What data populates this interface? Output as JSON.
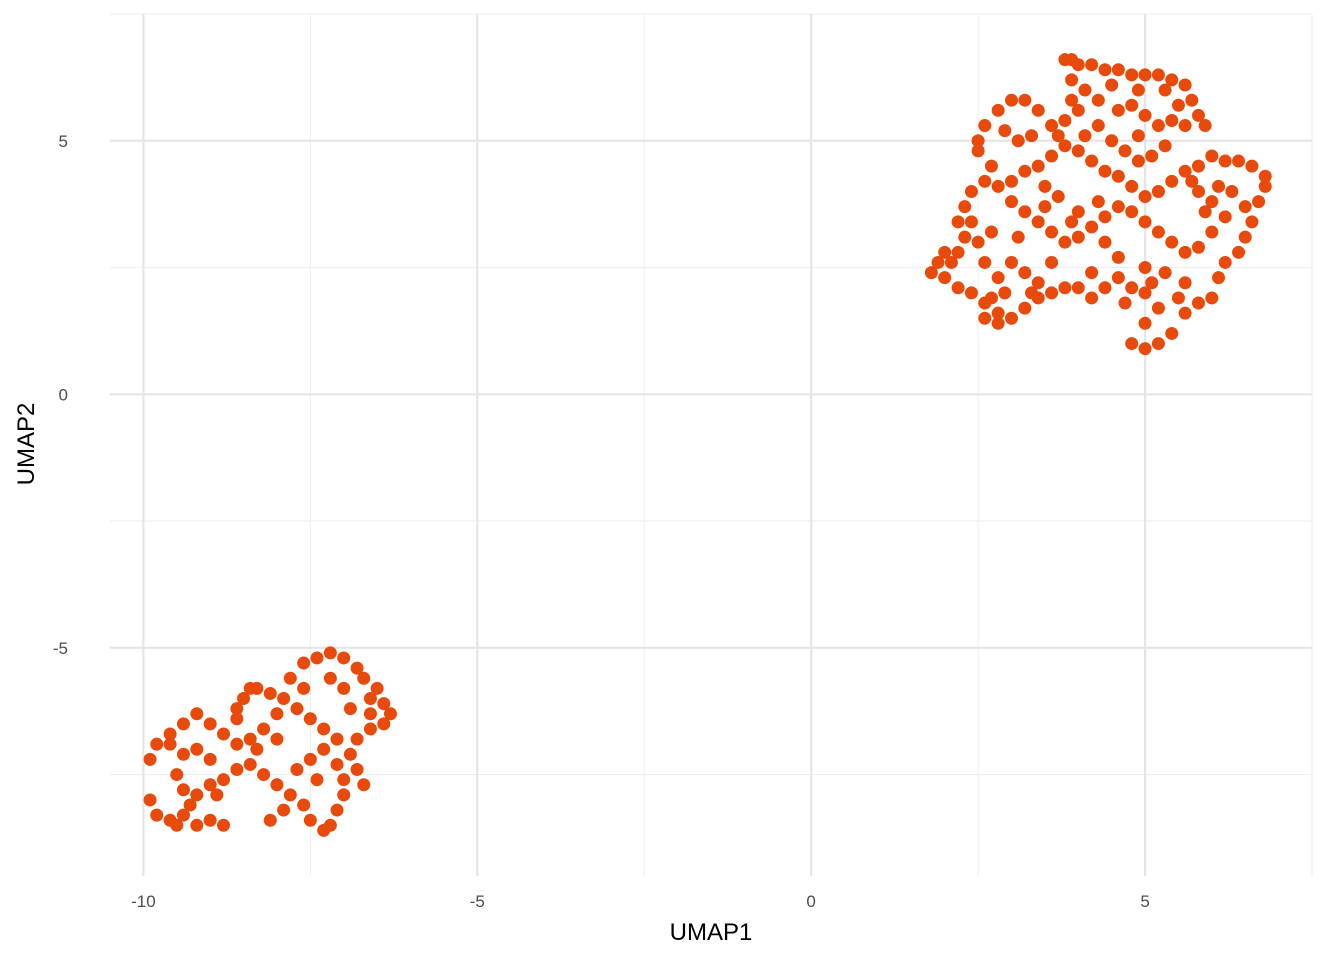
{
  "chart_data": {
    "type": "scatter",
    "title": "",
    "xlabel": "UMAP1",
    "ylabel": "UMAP2",
    "xlim": [
      -10.5,
      7.5
    ],
    "ylim": [
      -9.5,
      7.5
    ],
    "x_ticks": [
      -10,
      -5,
      0,
      5
    ],
    "x_tick_labels": [
      "-10",
      "-5",
      "0",
      "5"
    ],
    "y_ticks": [
      -5,
      0,
      5
    ],
    "y_tick_labels": [
      "-5",
      "0",
      "5"
    ],
    "grid": true,
    "legend": "none",
    "point_color": "#E84A0C",
    "series": [
      {
        "points": [
          [
            3.8,
            6.6
          ],
          [
            3.9,
            6.6
          ],
          [
            4.0,
            6.5
          ],
          [
            4.2,
            6.5
          ],
          [
            4.4,
            6.4
          ],
          [
            4.6,
            6.4
          ],
          [
            4.8,
            6.3
          ],
          [
            5.0,
            6.3
          ],
          [
            5.2,
            6.3
          ],
          [
            5.4,
            6.2
          ],
          [
            5.6,
            6.1
          ],
          [
            5.7,
            5.8
          ],
          [
            5.8,
            5.5
          ],
          [
            5.9,
            5.3
          ],
          [
            5.6,
            5.3
          ],
          [
            5.4,
            5.4
          ],
          [
            5.2,
            5.3
          ],
          [
            5.0,
            5.5
          ],
          [
            4.8,
            5.7
          ],
          [
            4.6,
            5.6
          ],
          [
            4.3,
            5.8
          ],
          [
            4.1,
            6.0
          ],
          [
            3.9,
            6.2
          ],
          [
            4.0,
            5.6
          ],
          [
            3.8,
            5.4
          ],
          [
            3.6,
            5.3
          ],
          [
            3.4,
            5.6
          ],
          [
            3.2,
            5.8
          ],
          [
            3.0,
            5.8
          ],
          [
            2.8,
            5.6
          ],
          [
            2.6,
            5.3
          ],
          [
            2.5,
            5.0
          ],
          [
            2.5,
            4.8
          ],
          [
            2.7,
            4.5
          ],
          [
            2.6,
            4.2
          ],
          [
            2.4,
            4.0
          ],
          [
            2.3,
            3.7
          ],
          [
            2.2,
            3.4
          ],
          [
            2.3,
            3.1
          ],
          [
            2.5,
            3.0
          ],
          [
            2.2,
            2.8
          ],
          [
            2.0,
            2.8
          ],
          [
            1.9,
            2.6
          ],
          [
            1.8,
            2.4
          ],
          [
            2.0,
            2.3
          ],
          [
            2.2,
            2.1
          ],
          [
            2.4,
            2.0
          ],
          [
            2.6,
            1.8
          ],
          [
            2.8,
            1.6
          ],
          [
            2.6,
            1.5
          ],
          [
            2.8,
            1.4
          ],
          [
            3.0,
            1.5
          ],
          [
            3.2,
            1.7
          ],
          [
            3.4,
            1.9
          ],
          [
            3.6,
            2.0
          ],
          [
            3.8,
            2.1
          ],
          [
            4.0,
            2.1
          ],
          [
            4.2,
            1.9
          ],
          [
            4.4,
            2.1
          ],
          [
            4.6,
            2.3
          ],
          [
            4.8,
            2.1
          ],
          [
            5.0,
            2.0
          ],
          [
            5.2,
            1.7
          ],
          [
            5.0,
            1.4
          ],
          [
            4.8,
            1.0
          ],
          [
            5.0,
            0.9
          ],
          [
            5.2,
            1.0
          ],
          [
            5.4,
            1.2
          ],
          [
            5.6,
            1.6
          ],
          [
            5.8,
            1.8
          ],
          [
            6.0,
            1.9
          ],
          [
            6.1,
            2.3
          ],
          [
            6.2,
            2.6
          ],
          [
            6.4,
            2.8
          ],
          [
            6.5,
            3.1
          ],
          [
            6.6,
            3.4
          ],
          [
            6.7,
            3.8
          ],
          [
            6.8,
            4.1
          ],
          [
            6.8,
            4.3
          ],
          [
            6.6,
            4.5
          ],
          [
            6.4,
            4.6
          ],
          [
            6.2,
            4.6
          ],
          [
            6.0,
            4.7
          ],
          [
            5.8,
            4.5
          ],
          [
            5.6,
            4.4
          ],
          [
            5.4,
            4.2
          ],
          [
            5.2,
            4.0
          ],
          [
            5.0,
            3.9
          ],
          [
            4.8,
            4.1
          ],
          [
            4.6,
            4.3
          ],
          [
            4.4,
            4.4
          ],
          [
            4.2,
            4.6
          ],
          [
            4.0,
            4.8
          ],
          [
            3.8,
            4.9
          ],
          [
            3.6,
            4.7
          ],
          [
            3.4,
            4.5
          ],
          [
            3.2,
            4.4
          ],
          [
            3.0,
            4.2
          ],
          [
            2.8,
            4.1
          ],
          [
            3.0,
            3.8
          ],
          [
            3.2,
            3.6
          ],
          [
            3.4,
            3.4
          ],
          [
            3.6,
            3.2
          ],
          [
            3.8,
            3.0
          ],
          [
            4.0,
            3.1
          ],
          [
            4.2,
            3.3
          ],
          [
            4.4,
            3.5
          ],
          [
            4.6,
            3.7
          ],
          [
            4.8,
            3.6
          ],
          [
            5.0,
            3.4
          ],
          [
            5.2,
            3.2
          ],
          [
            5.4,
            3.0
          ],
          [
            5.6,
            2.8
          ],
          [
            5.8,
            2.9
          ],
          [
            6.0,
            3.2
          ],
          [
            6.2,
            3.5
          ],
          [
            6.0,
            3.8
          ],
          [
            5.8,
            4.0
          ],
          [
            3.0,
            2.6
          ],
          [
            3.2,
            2.4
          ],
          [
            3.4,
            2.2
          ],
          [
            2.8,
            2.3
          ],
          [
            2.6,
            2.6
          ],
          [
            3.6,
            2.6
          ],
          [
            4.2,
            2.4
          ],
          [
            4.6,
            2.7
          ],
          [
            5.0,
            2.5
          ],
          [
            5.3,
            2.4
          ],
          [
            5.6,
            2.2
          ],
          [
            4.4,
            3.0
          ],
          [
            4.0,
            3.6
          ],
          [
            3.7,
            3.9
          ],
          [
            3.5,
            4.1
          ],
          [
            3.1,
            5.0
          ],
          [
            2.9,
            5.2
          ],
          [
            3.3,
            5.1
          ],
          [
            4.5,
            5.0
          ],
          [
            4.7,
            4.8
          ],
          [
            4.9,
            4.6
          ],
          [
            5.1,
            4.7
          ],
          [
            5.3,
            4.9
          ],
          [
            4.3,
            5.3
          ],
          [
            4.1,
            5.1
          ],
          [
            3.9,
            5.8
          ],
          [
            5.5,
            5.7
          ],
          [
            5.3,
            6.0
          ],
          [
            4.9,
            6.0
          ],
          [
            4.5,
            6.1
          ],
          [
            2.4,
            3.4
          ],
          [
            2.7,
            3.2
          ],
          [
            3.1,
            3.1
          ],
          [
            5.9,
            3.6
          ],
          [
            6.3,
            4.0
          ],
          [
            6.5,
            3.7
          ],
          [
            2.1,
            2.6
          ],
          [
            2.9,
            2.0
          ],
          [
            3.3,
            2.0
          ],
          [
            5.5,
            1.9
          ],
          [
            5.1,
            2.2
          ],
          [
            4.7,
            1.8
          ],
          [
            2.7,
            1.9
          ],
          [
            3.7,
            5.1
          ],
          [
            4.9,
            5.1
          ],
          [
            5.7,
            4.2
          ],
          [
            6.1,
            4.1
          ],
          [
            4.3,
            3.8
          ],
          [
            3.9,
            3.4
          ],
          [
            3.5,
            3.7
          ]
        ]
      },
      {
        "points": [
          [
            -9.9,
            -7.2
          ],
          [
            -9.8,
            -6.9
          ],
          [
            -9.6,
            -6.7
          ],
          [
            -9.4,
            -6.5
          ],
          [
            -9.2,
            -6.3
          ],
          [
            -9.0,
            -6.5
          ],
          [
            -8.8,
            -6.7
          ],
          [
            -8.6,
            -6.9
          ],
          [
            -8.4,
            -6.8
          ],
          [
            -8.2,
            -6.6
          ],
          [
            -8.0,
            -6.3
          ],
          [
            -7.9,
            -6.0
          ],
          [
            -8.1,
            -5.9
          ],
          [
            -8.3,
            -5.8
          ],
          [
            -7.8,
            -5.6
          ],
          [
            -7.6,
            -5.3
          ],
          [
            -7.4,
            -5.2
          ],
          [
            -7.2,
            -5.1
          ],
          [
            -7.0,
            -5.2
          ],
          [
            -6.8,
            -5.4
          ],
          [
            -6.7,
            -5.6
          ],
          [
            -6.5,
            -5.8
          ],
          [
            -6.4,
            -6.1
          ],
          [
            -6.3,
            -6.3
          ],
          [
            -6.4,
            -6.5
          ],
          [
            -6.6,
            -6.6
          ],
          [
            -6.8,
            -6.8
          ],
          [
            -6.9,
            -7.1
          ],
          [
            -7.1,
            -7.3
          ],
          [
            -7.0,
            -7.6
          ],
          [
            -7.0,
            -7.9
          ],
          [
            -7.1,
            -8.2
          ],
          [
            -7.2,
            -8.5
          ],
          [
            -7.3,
            -8.6
          ],
          [
            -7.5,
            -8.4
          ],
          [
            -7.6,
            -8.1
          ],
          [
            -7.8,
            -7.9
          ],
          [
            -8.0,
            -7.7
          ],
          [
            -8.2,
            -7.5
          ],
          [
            -8.4,
            -7.3
          ],
          [
            -8.6,
            -7.4
          ],
          [
            -8.8,
            -7.6
          ],
          [
            -9.0,
            -7.7
          ],
          [
            -9.2,
            -7.9
          ],
          [
            -9.3,
            -8.1
          ],
          [
            -9.4,
            -8.3
          ],
          [
            -9.6,
            -8.4
          ],
          [
            -9.8,
            -8.3
          ],
          [
            -9.9,
            -8.0
          ],
          [
            -9.5,
            -8.5
          ],
          [
            -9.2,
            -8.5
          ],
          [
            -9.0,
            -8.4
          ],
          [
            -8.8,
            -8.5
          ],
          [
            -9.0,
            -7.2
          ],
          [
            -9.2,
            -7.0
          ],
          [
            -9.4,
            -7.1
          ],
          [
            -9.5,
            -7.5
          ],
          [
            -9.4,
            -7.8
          ],
          [
            -8.6,
            -6.2
          ],
          [
            -8.5,
            -6.0
          ],
          [
            -8.4,
            -5.8
          ],
          [
            -7.7,
            -6.2
          ],
          [
            -7.5,
            -6.4
          ],
          [
            -7.3,
            -6.6
          ],
          [
            -7.1,
            -6.8
          ],
          [
            -7.3,
            -7.0
          ],
          [
            -7.5,
            -7.2
          ],
          [
            -7.7,
            -7.4
          ],
          [
            -6.9,
            -6.2
          ],
          [
            -6.6,
            -6.0
          ],
          [
            -6.6,
            -6.3
          ],
          [
            -7.2,
            -5.6
          ],
          [
            -7.0,
            -5.8
          ],
          [
            -7.6,
            -5.8
          ],
          [
            -8.0,
            -6.8
          ],
          [
            -8.3,
            -7.0
          ],
          [
            -8.6,
            -6.4
          ],
          [
            -9.6,
            -6.9
          ],
          [
            -7.9,
            -8.2
          ],
          [
            -8.1,
            -8.4
          ],
          [
            -6.8,
            -7.4
          ],
          [
            -6.7,
            -7.7
          ],
          [
            -7.4,
            -7.6
          ],
          [
            -8.9,
            -7.9
          ]
        ]
      }
    ]
  }
}
